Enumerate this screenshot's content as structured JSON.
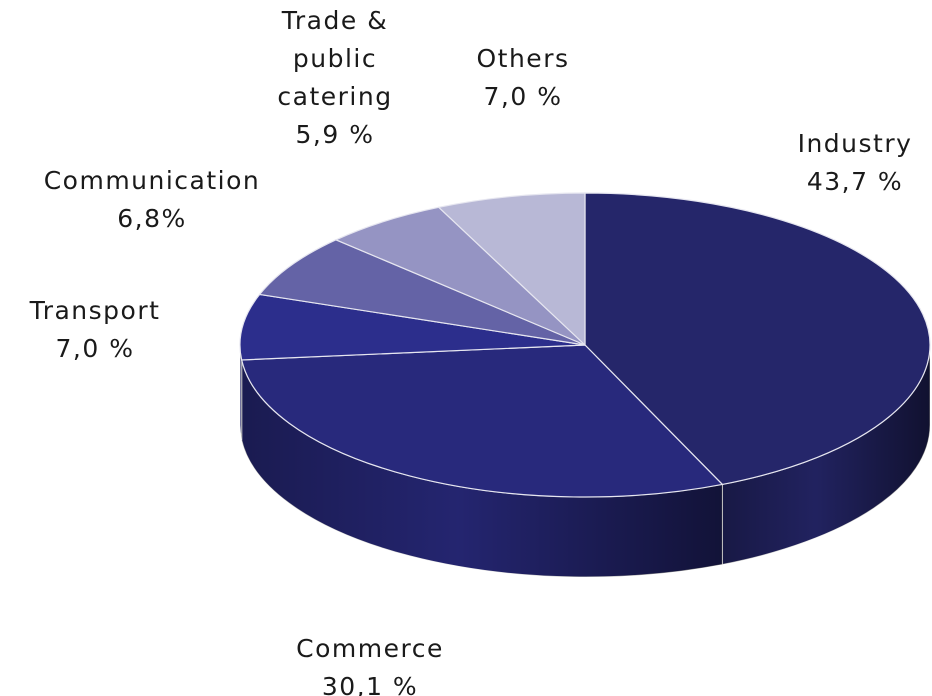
{
  "chart_data": {
    "type": "pie",
    "categories": [
      "Industry",
      "Commerce",
      "Transport",
      "Communication",
      "Trade & public catering",
      "Others"
    ],
    "values": [
      43.7,
      30.1,
      7.0,
      6.8,
      5.9,
      7.0
    ],
    "value_labels": [
      "43,7 %",
      "30,1 %",
      "7,0 %",
      "6,8%",
      "5,9 %",
      "7,0 %"
    ],
    "colors": [
      "#25266a",
      "#28297c",
      "#2c2e8c",
      "#6463a6",
      "#9594c3",
      "#b8b8d6"
    ]
  }
}
